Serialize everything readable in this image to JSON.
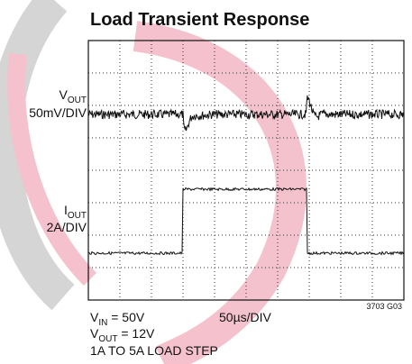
{
  "title": "Load Transient Response",
  "labels": {
    "vout_axis": {
      "symbol": "V",
      "subscript": "OUT",
      "scale": "50mV/DIV"
    },
    "iout_axis": {
      "symbol": "I",
      "subscript": "OUT",
      "scale": "2A/DIV"
    },
    "time_scale": "50µs/DIV",
    "figure_id": "3703 G03",
    "conditions": [
      {
        "symbol": "V",
        "subscript": "IN",
        "text": " = 50V"
      },
      {
        "symbol": "V",
        "subscript": "OUT",
        "text": " = 12V"
      },
      {
        "text": "1A TO 5A LOAD STEP"
      }
    ]
  }
}
